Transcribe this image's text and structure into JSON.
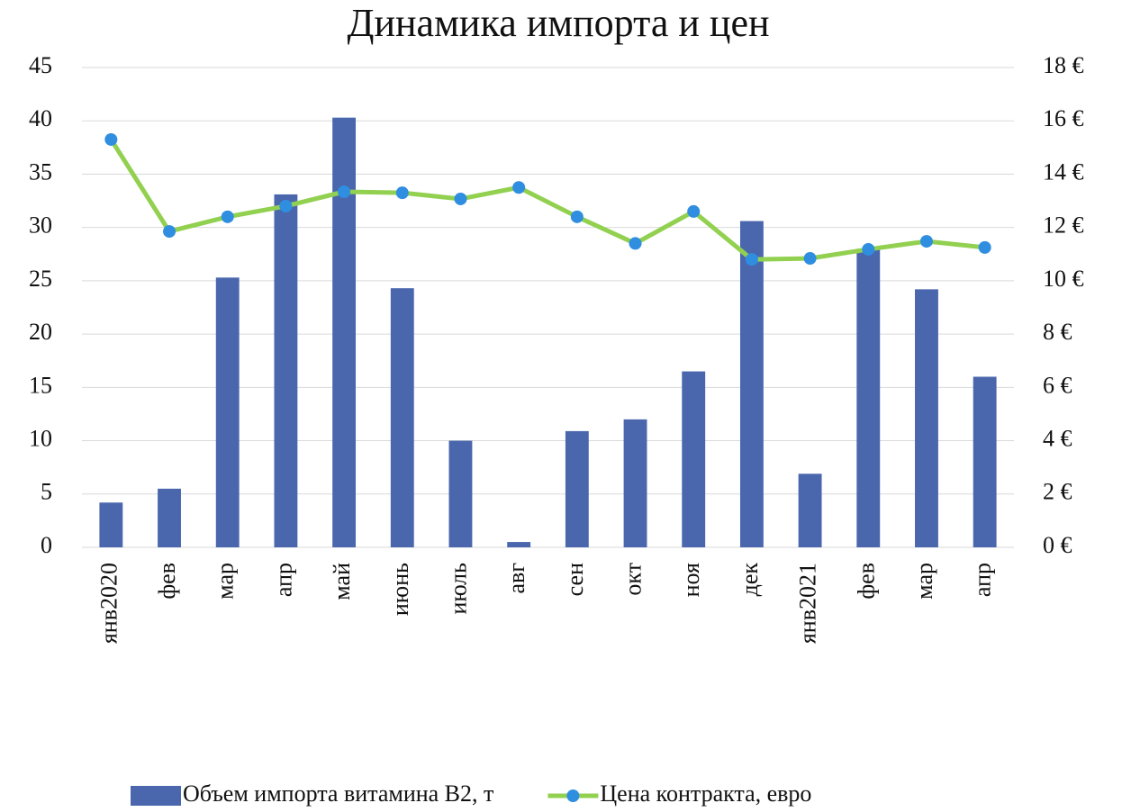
{
  "chart_data": {
    "type": "bar_line",
    "title": "Динамика импорта и цен",
    "categories": [
      "янв2020",
      "фев",
      "мар",
      "апр",
      "май",
      "июнь",
      "июль",
      "авг",
      "сен",
      "окт",
      "ноя",
      "дек",
      "янв2021",
      "фев",
      "мар",
      "апр"
    ],
    "series": [
      {
        "name": "Объем импорта витамина В2, т",
        "type": "bar",
        "color": "#4a67ad",
        "values": [
          4.2,
          5.5,
          25.3,
          33.1,
          40.3,
          24.3,
          10,
          0.5,
          10.9,
          12,
          16.5,
          30.6,
          6.9,
          28,
          24.2,
          16
        ]
      },
      {
        "name": "Цена контракта, евро",
        "type": "line",
        "axis": "y2",
        "color": "#92d050",
        "marker_color": "#2f8ee0",
        "values": [
          15.3,
          11.85,
          12.4,
          12.8,
          13.34,
          13.3,
          13.07,
          13.5,
          12.4,
          11.4,
          12.6,
          10.8,
          10.84,
          11.18,
          11.48,
          11.25
        ]
      }
    ],
    "ylim": [
      0,
      45
    ],
    "yticks": [
      0,
      5,
      10,
      15,
      20,
      25,
      30,
      35,
      40,
      45
    ],
    "y2lim": [
      0,
      18
    ],
    "y2ticks": [
      {
        "value": 0,
        "label": "0 €"
      },
      {
        "value": 2,
        "label": "2 €"
      },
      {
        "value": 4,
        "label": "4 €"
      },
      {
        "value": 6,
        "label": "6 €"
      },
      {
        "value": 8,
        "label": "8 €"
      },
      {
        "value": 10,
        "label": "10 €"
      },
      {
        "value": 12,
        "label": "12 €"
      },
      {
        "value": 14,
        "label": "14 €"
      },
      {
        "value": 16,
        "label": "16 €"
      },
      {
        "value": 18,
        "label": "18 €"
      }
    ],
    "grid": true,
    "legend": "bottom"
  }
}
